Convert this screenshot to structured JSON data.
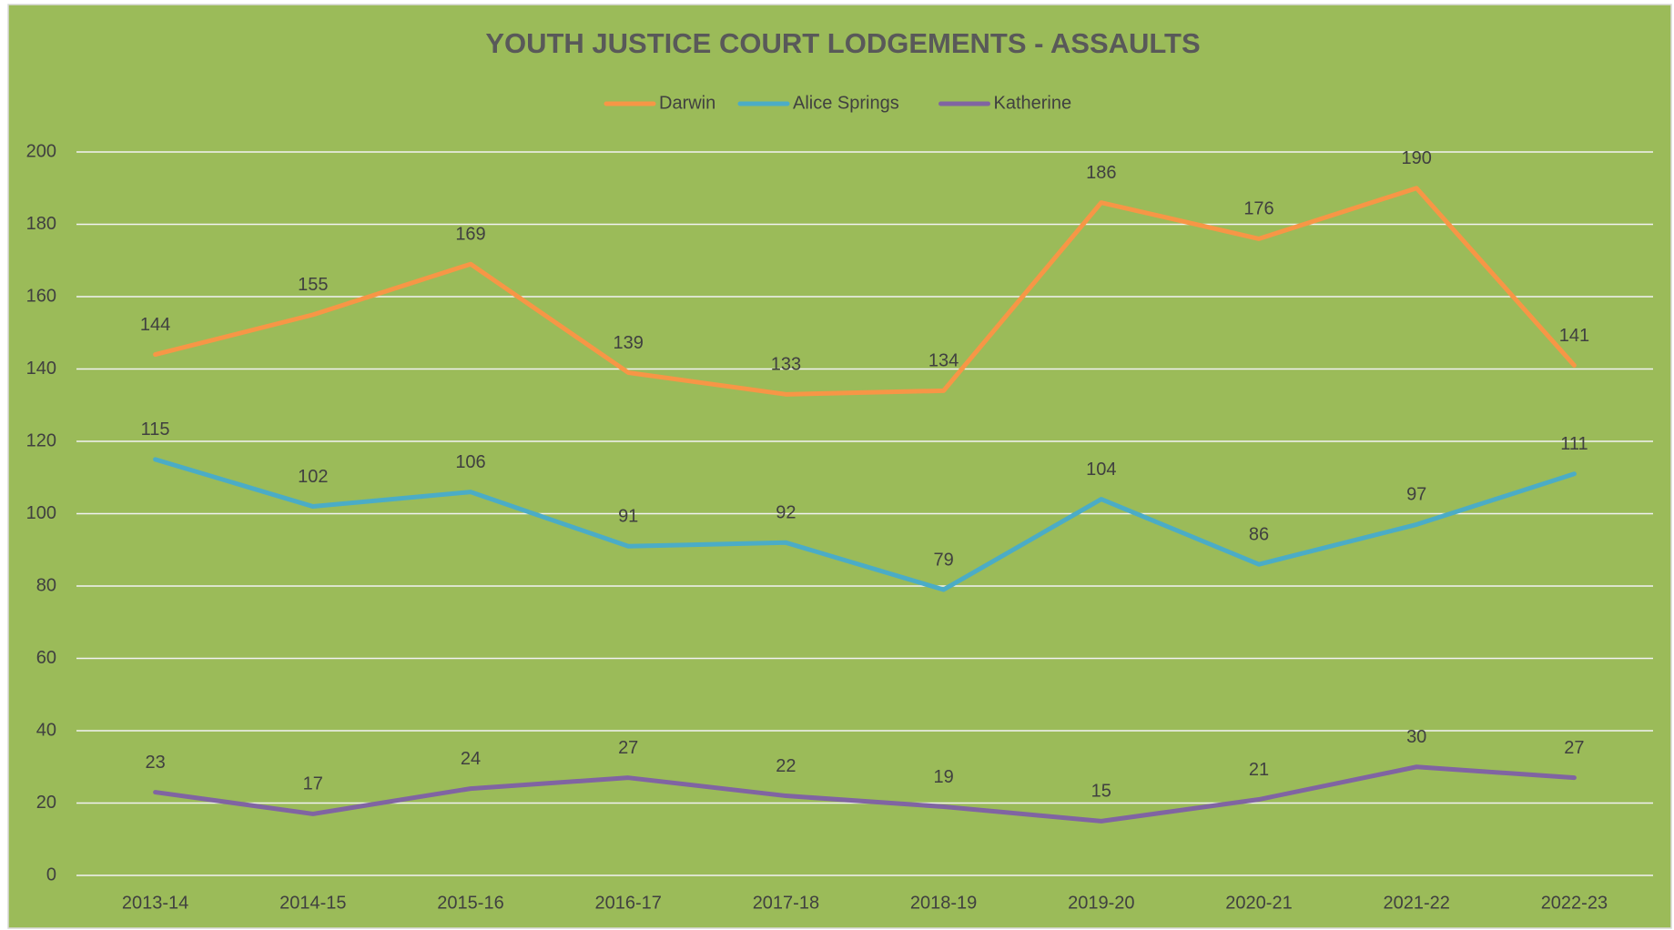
{
  "chart_data": {
    "type": "line",
    "title": "YOUTH JUSTICE COURT LODGEMENTS - ASSAULTS",
    "categories": [
      "2013-14",
      "2014-15",
      "2015-16",
      "2016-17",
      "2017-18",
      "2018-19",
      "2019-20",
      "2020-21",
      "2021-22",
      "2022-23"
    ],
    "series": [
      {
        "name": "Darwin",
        "color": "#f79646",
        "values": [
          144,
          155,
          169,
          139,
          133,
          134,
          186,
          176,
          190,
          141
        ]
      },
      {
        "name": "Alice Springs",
        "color": "#4bacc6",
        "values": [
          115,
          102,
          106,
          91,
          92,
          79,
          104,
          86,
          97,
          111
        ]
      },
      {
        "name": "Katherine",
        "color": "#8064a2",
        "values": [
          23,
          17,
          24,
          27,
          22,
          19,
          15,
          21,
          30,
          27
        ]
      }
    ],
    "ylim": [
      0,
      200
    ],
    "yticks": [
      0,
      20,
      40,
      60,
      80,
      100,
      120,
      140,
      160,
      180,
      200
    ],
    "grid": true,
    "legend": "top"
  }
}
